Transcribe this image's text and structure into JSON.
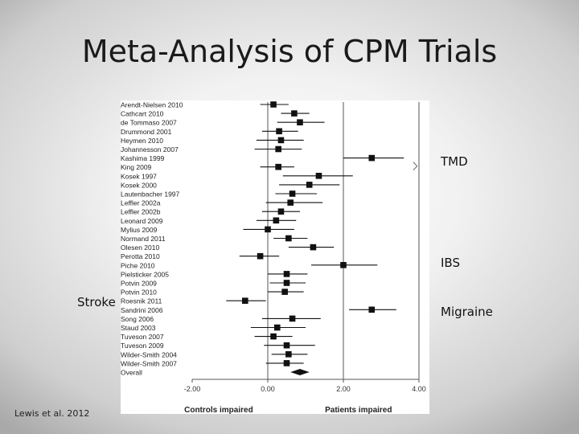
{
  "slide": {
    "title": "Meta-Analysis of CPM Trials",
    "citation": "Lewis et al. 2012",
    "labels": {
      "tmd": "TMD",
      "ibs": "IBS",
      "migraine": "Migraine",
      "stroke": "Stroke"
    }
  },
  "chart_data": {
    "type": "forest",
    "xlim": [
      -2.0,
      4.0
    ],
    "x_ticks": [
      "-2.00",
      "0.00",
      "2.00",
      "4.00"
    ],
    "x_tick_values": [
      -2,
      0,
      2,
      4
    ],
    "xlabel_left": "Controls impaired",
    "xlabel_right": "Patients impaired",
    "vertical_lines": [
      0,
      2,
      4
    ],
    "studies": [
      {
        "name": "Arendt-Nielsen 2010",
        "est": 0.15,
        "lo": -0.2,
        "hi": 0.55
      },
      {
        "name": "Cathcart 2010",
        "est": 0.7,
        "lo": 0.35,
        "hi": 1.1
      },
      {
        "name": "de Tommaso 2007",
        "est": 0.85,
        "lo": 0.25,
        "hi": 1.5
      },
      {
        "name": "Drummond 2001",
        "est": 0.3,
        "lo": -0.15,
        "hi": 0.8
      },
      {
        "name": "Heymen 2010",
        "est": 0.35,
        "lo": -0.3,
        "hi": 0.95
      },
      {
        "name": "Johannesson 2007",
        "est": 0.28,
        "lo": -0.35,
        "hi": 0.9
      },
      {
        "name": "Kashima 1999",
        "est": 2.75,
        "lo": 2.0,
        "hi": 3.6
      },
      {
        "name": "King 2009",
        "est": 0.28,
        "lo": -0.2,
        "hi": 0.7
      },
      {
        "name": "Kosek 1997",
        "est": 1.35,
        "lo": 0.4,
        "hi": 2.25
      },
      {
        "name": "Kosek 2000",
        "est": 1.1,
        "lo": 0.3,
        "hi": 1.9
      },
      {
        "name": "Lautenbacher 1997",
        "est": 0.65,
        "lo": 0.2,
        "hi": 1.3
      },
      {
        "name": "Leffler 2002a",
        "est": 0.6,
        "lo": -0.05,
        "hi": 1.45
      },
      {
        "name": "Leffler 2002b",
        "est": 0.35,
        "lo": -0.15,
        "hi": 0.85
      },
      {
        "name": "Leonard 2009",
        "est": 0.22,
        "lo": -0.3,
        "hi": 0.75
      },
      {
        "name": "Mylius 2009",
        "est": 0.0,
        "lo": -0.65,
        "hi": 0.7
      },
      {
        "name": "Normand 2011",
        "est": 0.55,
        "lo": 0.15,
        "hi": 1.05
      },
      {
        "name": "Olesen 2010",
        "est": 1.2,
        "lo": 0.55,
        "hi": 1.75
      },
      {
        "name": "Perotta 2010",
        "est": -0.2,
        "lo": -0.75,
        "hi": 0.3
      },
      {
        "name": "Piche 2010",
        "est": 2.0,
        "lo": 1.15,
        "hi": 2.9
      },
      {
        "name": "Pielsticker 2005",
        "est": 0.5,
        "lo": 0.0,
        "hi": 1.05
      },
      {
        "name": "Potvin 2009",
        "est": 0.5,
        "lo": 0.05,
        "hi": 1.0
      },
      {
        "name": "Potvin 2010",
        "est": 0.45,
        "lo": 0.0,
        "hi": 0.95
      },
      {
        "name": "Roesnik 2011",
        "est": -0.6,
        "lo": -1.1,
        "hi": -0.05
      },
      {
        "name": "Sandrini 2006",
        "est": 2.75,
        "lo": 2.15,
        "hi": 3.4
      },
      {
        "name": "Song 2006",
        "est": 0.65,
        "lo": -0.15,
        "hi": 1.4
      },
      {
        "name": "Staud 2003",
        "est": 0.25,
        "lo": -0.45,
        "hi": 1.0
      },
      {
        "name": "Tuveson 2007",
        "est": 0.15,
        "lo": -0.35,
        "hi": 0.65
      },
      {
        "name": "Tuveson 2009",
        "est": 0.5,
        "lo": -0.1,
        "hi": 1.25
      },
      {
        "name": "Wilder-Smith 2004",
        "est": 0.55,
        "lo": 0.1,
        "hi": 1.05
      },
      {
        "name": "Wilder-Smith 2007",
        "est": 0.5,
        "lo": -0.05,
        "hi": 0.95
      }
    ],
    "overall": {
      "name": "Overall",
      "est": 0.85,
      "lo": 0.6,
      "hi": 1.1
    }
  }
}
